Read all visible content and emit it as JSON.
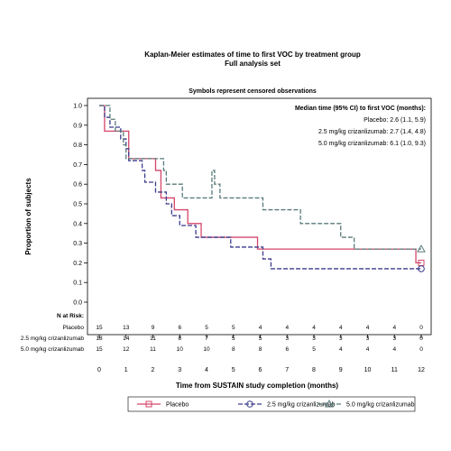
{
  "chart_data": {
    "type": "line",
    "title": "Kaplan-Meier estimates of time to first VOC by treatment group",
    "subtitle": "Full analysis set",
    "note": "Symbols represent censored observations",
    "xlabel": "Time from SUSTAIN study completion (months)",
    "ylabel": "Proportion of subjects",
    "xlim": [
      0,
      12
    ],
    "ylim": [
      0,
      1
    ],
    "x_ticks": [
      "0",
      "1",
      "2",
      "3",
      "4",
      "5",
      "6",
      "7",
      "8",
      "9",
      "10",
      "11",
      "12"
    ],
    "y_ticks": [
      "0.0",
      "0.1",
      "0.2",
      "0.3",
      "0.4",
      "0.5",
      "0.6",
      "0.7",
      "0.8",
      "0.9",
      "1.0"
    ],
    "grid": false,
    "annotation": {
      "heading": "Median time (95% CI) to first VOC (months):",
      "lines": [
        "Placebo: 2.6 (1.1, 5.9)",
        "2.5 mg/kg crizanlizumab: 2.7 (1.4, 4.8)",
        "5.0 mg/kg crizanlizumab: 6.1 (1.0, 9.3)"
      ]
    },
    "series": [
      {
        "name": "Placebo",
        "color": "#d4466a",
        "dash": "",
        "marker": "square",
        "steps": [
          [
            0,
            1.0
          ],
          [
            0.2,
            0.87
          ],
          [
            1.0,
            0.87
          ],
          [
            1.1,
            0.73
          ],
          [
            2.0,
            0.73
          ],
          [
            2.1,
            0.67
          ],
          [
            2.3,
            0.53
          ],
          [
            2.6,
            0.53
          ],
          [
            2.8,
            0.47
          ],
          [
            3.3,
            0.4
          ],
          [
            3.8,
            0.33
          ],
          [
            5.9,
            0.33
          ],
          [
            5.9,
            0.27
          ],
          [
            11.8,
            0.27
          ],
          [
            11.8,
            0.2
          ],
          [
            12.0,
            0.2
          ]
        ],
        "censored": [
          [
            12.0,
            0.2
          ]
        ]
      },
      {
        "name": "2.5 mg/kg crizanlizumab",
        "color": "#3b3b8c",
        "dash": "5,2",
        "marker": "circle",
        "steps": [
          [
            0,
            1.0
          ],
          [
            0.2,
            0.94
          ],
          [
            0.4,
            0.89
          ],
          [
            0.8,
            0.83
          ],
          [
            1.0,
            0.78
          ],
          [
            1.1,
            0.72
          ],
          [
            1.6,
            0.67
          ],
          [
            1.7,
            0.61
          ],
          [
            2.1,
            0.56
          ],
          [
            2.5,
            0.5
          ],
          [
            2.7,
            0.44
          ],
          [
            3.0,
            0.39
          ],
          [
            3.6,
            0.33
          ],
          [
            4.8,
            0.33
          ],
          [
            4.9,
            0.28
          ],
          [
            6.0,
            0.28
          ],
          [
            6.1,
            0.22
          ],
          [
            6.4,
            0.17
          ],
          [
            12.0,
            0.17
          ]
        ],
        "censored": [
          [
            12.0,
            0.17
          ]
        ]
      },
      {
        "name": "5.0 mg/kg crizanlizumab",
        "color": "#5a7a7a",
        "dash": "5,2",
        "marker": "triangle",
        "steps": [
          [
            0,
            1.0
          ],
          [
            0.4,
            0.93
          ],
          [
            0.6,
            0.87
          ],
          [
            0.9,
            0.8
          ],
          [
            1.0,
            0.73
          ],
          [
            2.3,
            0.73
          ],
          [
            2.4,
            0.67
          ],
          [
            2.5,
            0.6
          ],
          [
            3.0,
            0.6
          ],
          [
            3.1,
            0.53
          ],
          [
            4.1,
            0.53
          ],
          [
            4.2,
            0.67
          ],
          [
            4.3,
            0.6
          ],
          [
            4.5,
            0.53
          ],
          [
            6.0,
            0.53
          ],
          [
            6.1,
            0.47
          ],
          [
            7.4,
            0.47
          ],
          [
            7.5,
            0.4
          ],
          [
            8.9,
            0.4
          ],
          [
            9.0,
            0.33
          ],
          [
            9.4,
            0.33
          ],
          [
            9.5,
            0.27
          ],
          [
            12.0,
            0.27
          ]
        ],
        "censored": [
          [
            12.0,
            0.27
          ]
        ]
      }
    ],
    "risk_table": {
      "header": "N at Risk:",
      "rows": [
        {
          "label": "Placebo",
          "values": [
            "15",
            "13",
            "9",
            "6",
            "5",
            "5",
            "4",
            "4",
            "4",
            "4",
            "4",
            "4",
            "0"
          ]
        },
        {
          "label": "2.5 mg/kg crizanlizumab",
          "values": [
            "18",
            "14",
            "11",
            "8",
            "7",
            "5",
            "5",
            "3",
            "3",
            "3",
            "3",
            "3",
            "0"
          ]
        },
        {
          "label": "5.0 mg/kg crizanlizumab",
          "values": [
            "15",
            "12",
            "11",
            "10",
            "10",
            "8",
            "8",
            "6",
            "5",
            "4",
            "4",
            "4",
            "0"
          ]
        }
      ]
    },
    "legend_position": "bottom"
  }
}
